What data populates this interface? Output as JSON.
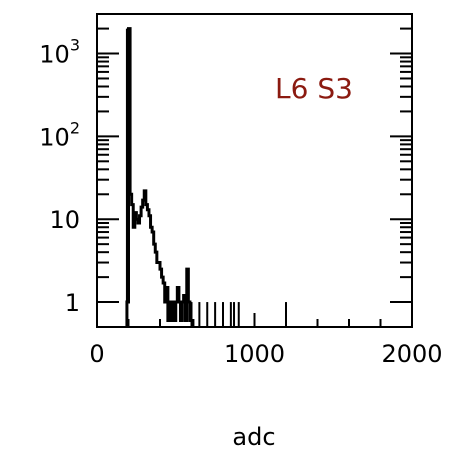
{
  "chart_data": {
    "type": "line",
    "title": "",
    "xlabel": "adc",
    "ylabel": "",
    "annotation": "L6 S3",
    "xlim": [
      0,
      2000
    ],
    "ylim": [
      0.5,
      3000
    ],
    "yscale": "log",
    "grid": false,
    "x_ticks": [
      {
        "value": 0,
        "label": "0"
      },
      {
        "value": 1000,
        "label": "1000"
      },
      {
        "value": 2000,
        "label": "2000"
      }
    ],
    "y_ticks": [
      {
        "value": 1,
        "base": "1",
        "exp": ""
      },
      {
        "value": 10,
        "base": "10",
        "exp": ""
      },
      {
        "value": 100,
        "base": "10",
        "exp": "2"
      },
      {
        "value": 1000,
        "base": "10",
        "exp": "3"
      }
    ],
    "series": [
      {
        "x": [
          190,
          200,
          210,
          220,
          230,
          240,
          250,
          260,
          270,
          280,
          290,
          300,
          310,
          320,
          330,
          340,
          350,
          360,
          370,
          380,
          390,
          400,
          410,
          420,
          430,
          440,
          450,
          460,
          470,
          480,
          490,
          500,
          510,
          520,
          530,
          540,
          550,
          560,
          570,
          580,
          590,
          600,
          650,
          700,
          750,
          800,
          850,
          870,
          900,
          1200
        ],
        "y": [
          1,
          2000,
          20,
          15,
          8,
          12,
          10,
          9,
          11,
          14,
          17,
          22,
          15,
          13,
          11,
          8,
          7,
          5,
          4,
          3,
          3,
          2.5,
          2,
          1.7,
          1,
          1.5,
          0.6,
          1,
          0.6,
          1,
          0.6,
          1,
          1.5,
          1,
          0.6,
          1,
          1.2,
          0.6,
          2.5,
          1,
          0.6,
          1,
          1,
          1,
          1,
          1,
          1,
          1,
          1,
          1
        ]
      }
    ]
  }
}
